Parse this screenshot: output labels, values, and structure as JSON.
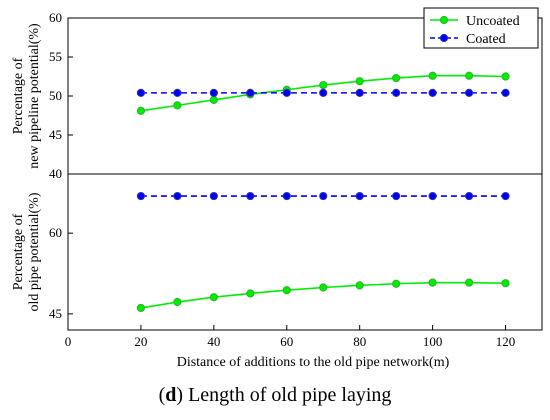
{
  "chart_data": {
    "type": "line",
    "xlabel": "Distance of additions to the old pipe network(m)",
    "xlim": [
      0,
      130
    ],
    "xticks": [
      "0",
      "20",
      "40",
      "60",
      "80",
      "100",
      "120"
    ],
    "x": [
      20,
      30,
      40,
      50,
      60,
      70,
      80,
      90,
      100,
      110,
      120
    ],
    "legend": {
      "placement": "top-right",
      "entries": [
        "Uncoated",
        "Coated"
      ]
    },
    "panels": [
      {
        "ylabel_line1": "Percentage of",
        "ylabel_line2": "new pipeline potential(%)",
        "ylim": [
          40,
          60
        ],
        "yticks": [
          "40",
          "45",
          "50",
          "55",
          "60"
        ],
        "series": [
          {
            "name": "Uncoated",
            "color": "#00ee00",
            "style": "solid",
            "values": [
              48.1,
              48.8,
              49.5,
              50.2,
              50.8,
              51.4,
              51.9,
              52.3,
              52.6,
              52.6,
              52.5
            ]
          },
          {
            "name": "Coated",
            "color": "#0000ee",
            "style": "dashed",
            "values": [
              50.4,
              50.4,
              50.4,
              50.4,
              50.4,
              50.4,
              50.4,
              50.4,
              50.4,
              50.4,
              50.4
            ]
          }
        ]
      },
      {
        "ylabel_line1": "Percentage of",
        "ylabel_line2": "old pipe potential(%)",
        "ylim": [
          42,
          71
        ],
        "yticks": [
          "45",
          "60"
        ],
        "series": [
          {
            "name": "Uncoated",
            "color": "#00ee00",
            "style": "solid",
            "values": [
              46.1,
              47.2,
              48.1,
              48.8,
              49.4,
              49.9,
              50.3,
              50.6,
              50.8,
              50.8,
              50.7
            ]
          },
          {
            "name": "Coated",
            "color": "#0000ee",
            "style": "dashed",
            "values": [
              66.9,
              66.9,
              66.9,
              66.9,
              66.9,
              66.9,
              66.9,
              66.9,
              66.9,
              66.9,
              66.9
            ]
          }
        ]
      }
    ]
  },
  "caption": {
    "bold": "d",
    "rest": ") Length of old pipe laying"
  }
}
